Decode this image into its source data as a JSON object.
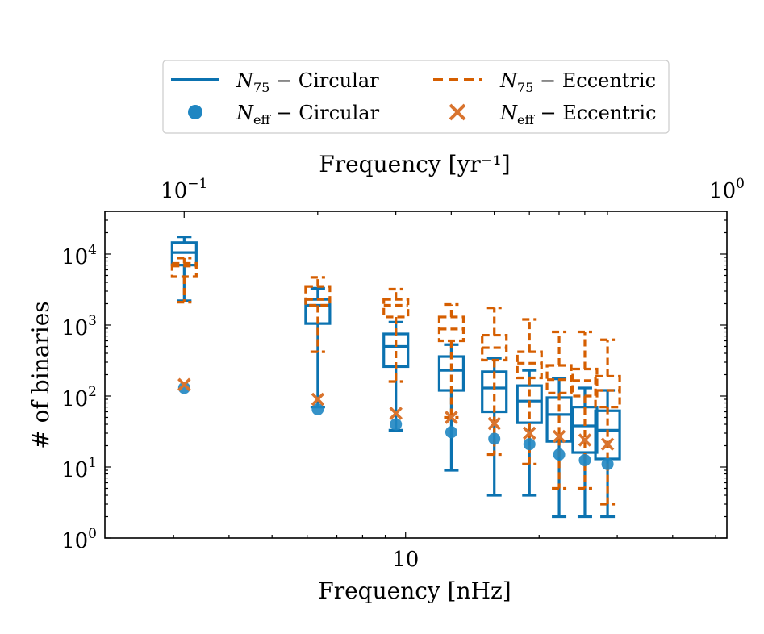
{
  "chart_data": {
    "type": "box",
    "xlabel": "Frequency [nHz]",
    "xlabel_top": "Frequency [yr⁻¹]",
    "ylabel": "# of binaries",
    "x_scale": "log",
    "y_scale": "log",
    "xlim": [
      2.1,
      53.0
    ],
    "ylim": [
      1,
      40000
    ],
    "x_ticks": [
      {
        "value": 10,
        "label": "10"
      }
    ],
    "y_ticks": [
      {
        "value": 1,
        "base": "10",
        "exp": "0"
      },
      {
        "value": 10,
        "base": "10",
        "exp": "1"
      },
      {
        "value": 100,
        "base": "10",
        "exp": "2"
      },
      {
        "value": 1000,
        "base": "10",
        "exp": "3"
      },
      {
        "value": 10000,
        "base": "10",
        "exp": "4"
      }
    ],
    "top_ticks": [
      {
        "value_yr": 0.1,
        "base": "10",
        "exp": "−1"
      },
      {
        "value_yr": 1.0,
        "base": "10",
        "exp": "0"
      }
    ],
    "legend": {
      "position": "upper center, above plot",
      "entries": [
        {
          "key": "n75_circ",
          "main": "N",
          "sub": "75",
          "rest": " − Circular"
        },
        {
          "key": "neff_circ",
          "main": "N",
          "sub": "eff",
          "rest": " − Circular"
        },
        {
          "key": "n75_ecc",
          "main": "N",
          "sub": "75",
          "rest": " − Eccentric"
        },
        {
          "key": "neff_ecc",
          "main": "N",
          "sub": "eff",
          "rest": " − Eccentric"
        }
      ]
    },
    "colors": {
      "circular": "#0b72b0",
      "eccentric": "#d55e00",
      "circular_point": "#1f86c2",
      "eccentric_point": "#d9742e"
    },
    "frequencies_nhz": [
      3.17,
      6.34,
      9.51,
      12.68,
      15.85,
      19.02,
      22.19,
      25.36,
      28.53
    ],
    "series": [
      {
        "name": "N75 - Circular",
        "style": "solid",
        "boxes": [
          {
            "whislo": 2200,
            "q1": 7000,
            "med": 10500,
            "q3": 14500,
            "whishi": 17500
          },
          {
            "whislo": 70,
            "q1": 1050,
            "med": 1900,
            "q3": 2300,
            "whishi": 3300
          },
          {
            "whislo": 33,
            "q1": 260,
            "med": 500,
            "q3": 750,
            "whishi": 1100
          },
          {
            "whislo": 9,
            "q1": 120,
            "med": 230,
            "q3": 360,
            "whishi": 530
          },
          {
            "whislo": 4,
            "q1": 60,
            "med": 130,
            "q3": 220,
            "whishi": 340
          },
          {
            "whislo": 4,
            "q1": 42,
            "med": 85,
            "q3": 140,
            "whishi": 230
          },
          {
            "whislo": 2,
            "q1": 23,
            "med": 55,
            "q3": 95,
            "whishi": 175
          },
          {
            "whislo": 2,
            "q1": 16,
            "med": 38,
            "q3": 70,
            "whishi": 130
          },
          {
            "whislo": 2,
            "q1": 13,
            "med": 33,
            "q3": 62,
            "whishi": 120
          }
        ]
      },
      {
        "name": "N75 - Eccentric",
        "style": "dashed",
        "boxes": [
          {
            "whislo": 2100,
            "q1": 4800,
            "med": 6800,
            "q3": 7400,
            "whishi": 8800
          },
          {
            "whislo": 420,
            "q1": 1900,
            "med": 2300,
            "q3": 3500,
            "whishi": 4700
          },
          {
            "whislo": 160,
            "q1": 1300,
            "med": 1900,
            "q3": 2300,
            "whishi": 3200
          },
          {
            "whislo": 50,
            "q1": 600,
            "med": 880,
            "q3": 1300,
            "whishi": 1950
          },
          {
            "whislo": 15,
            "q1": 320,
            "med": 480,
            "q3": 720,
            "whishi": 1750
          },
          {
            "whislo": 11,
            "q1": 180,
            "med": 290,
            "q3": 420,
            "whishi": 1200
          },
          {
            "whislo": 5,
            "q1": 110,
            "med": 170,
            "q3": 270,
            "whishi": 800
          },
          {
            "whislo": 5,
            "q1": 100,
            "med": 165,
            "q3": 240,
            "whishi": 800
          },
          {
            "whislo": 3,
            "q1": 70,
            "med": 120,
            "q3": 190,
            "whishi": 620
          }
        ]
      }
    ],
    "points": [
      {
        "name": "Neff - Circular",
        "marker": "circle",
        "values": [
          130,
          65,
          40,
          31,
          25,
          21,
          15,
          12.5,
          11
        ]
      },
      {
        "name": "Neff - Eccentric",
        "marker": "x",
        "values": [
          145,
          90,
          57,
          50,
          41,
          30,
          27,
          24,
          21
        ]
      }
    ]
  }
}
